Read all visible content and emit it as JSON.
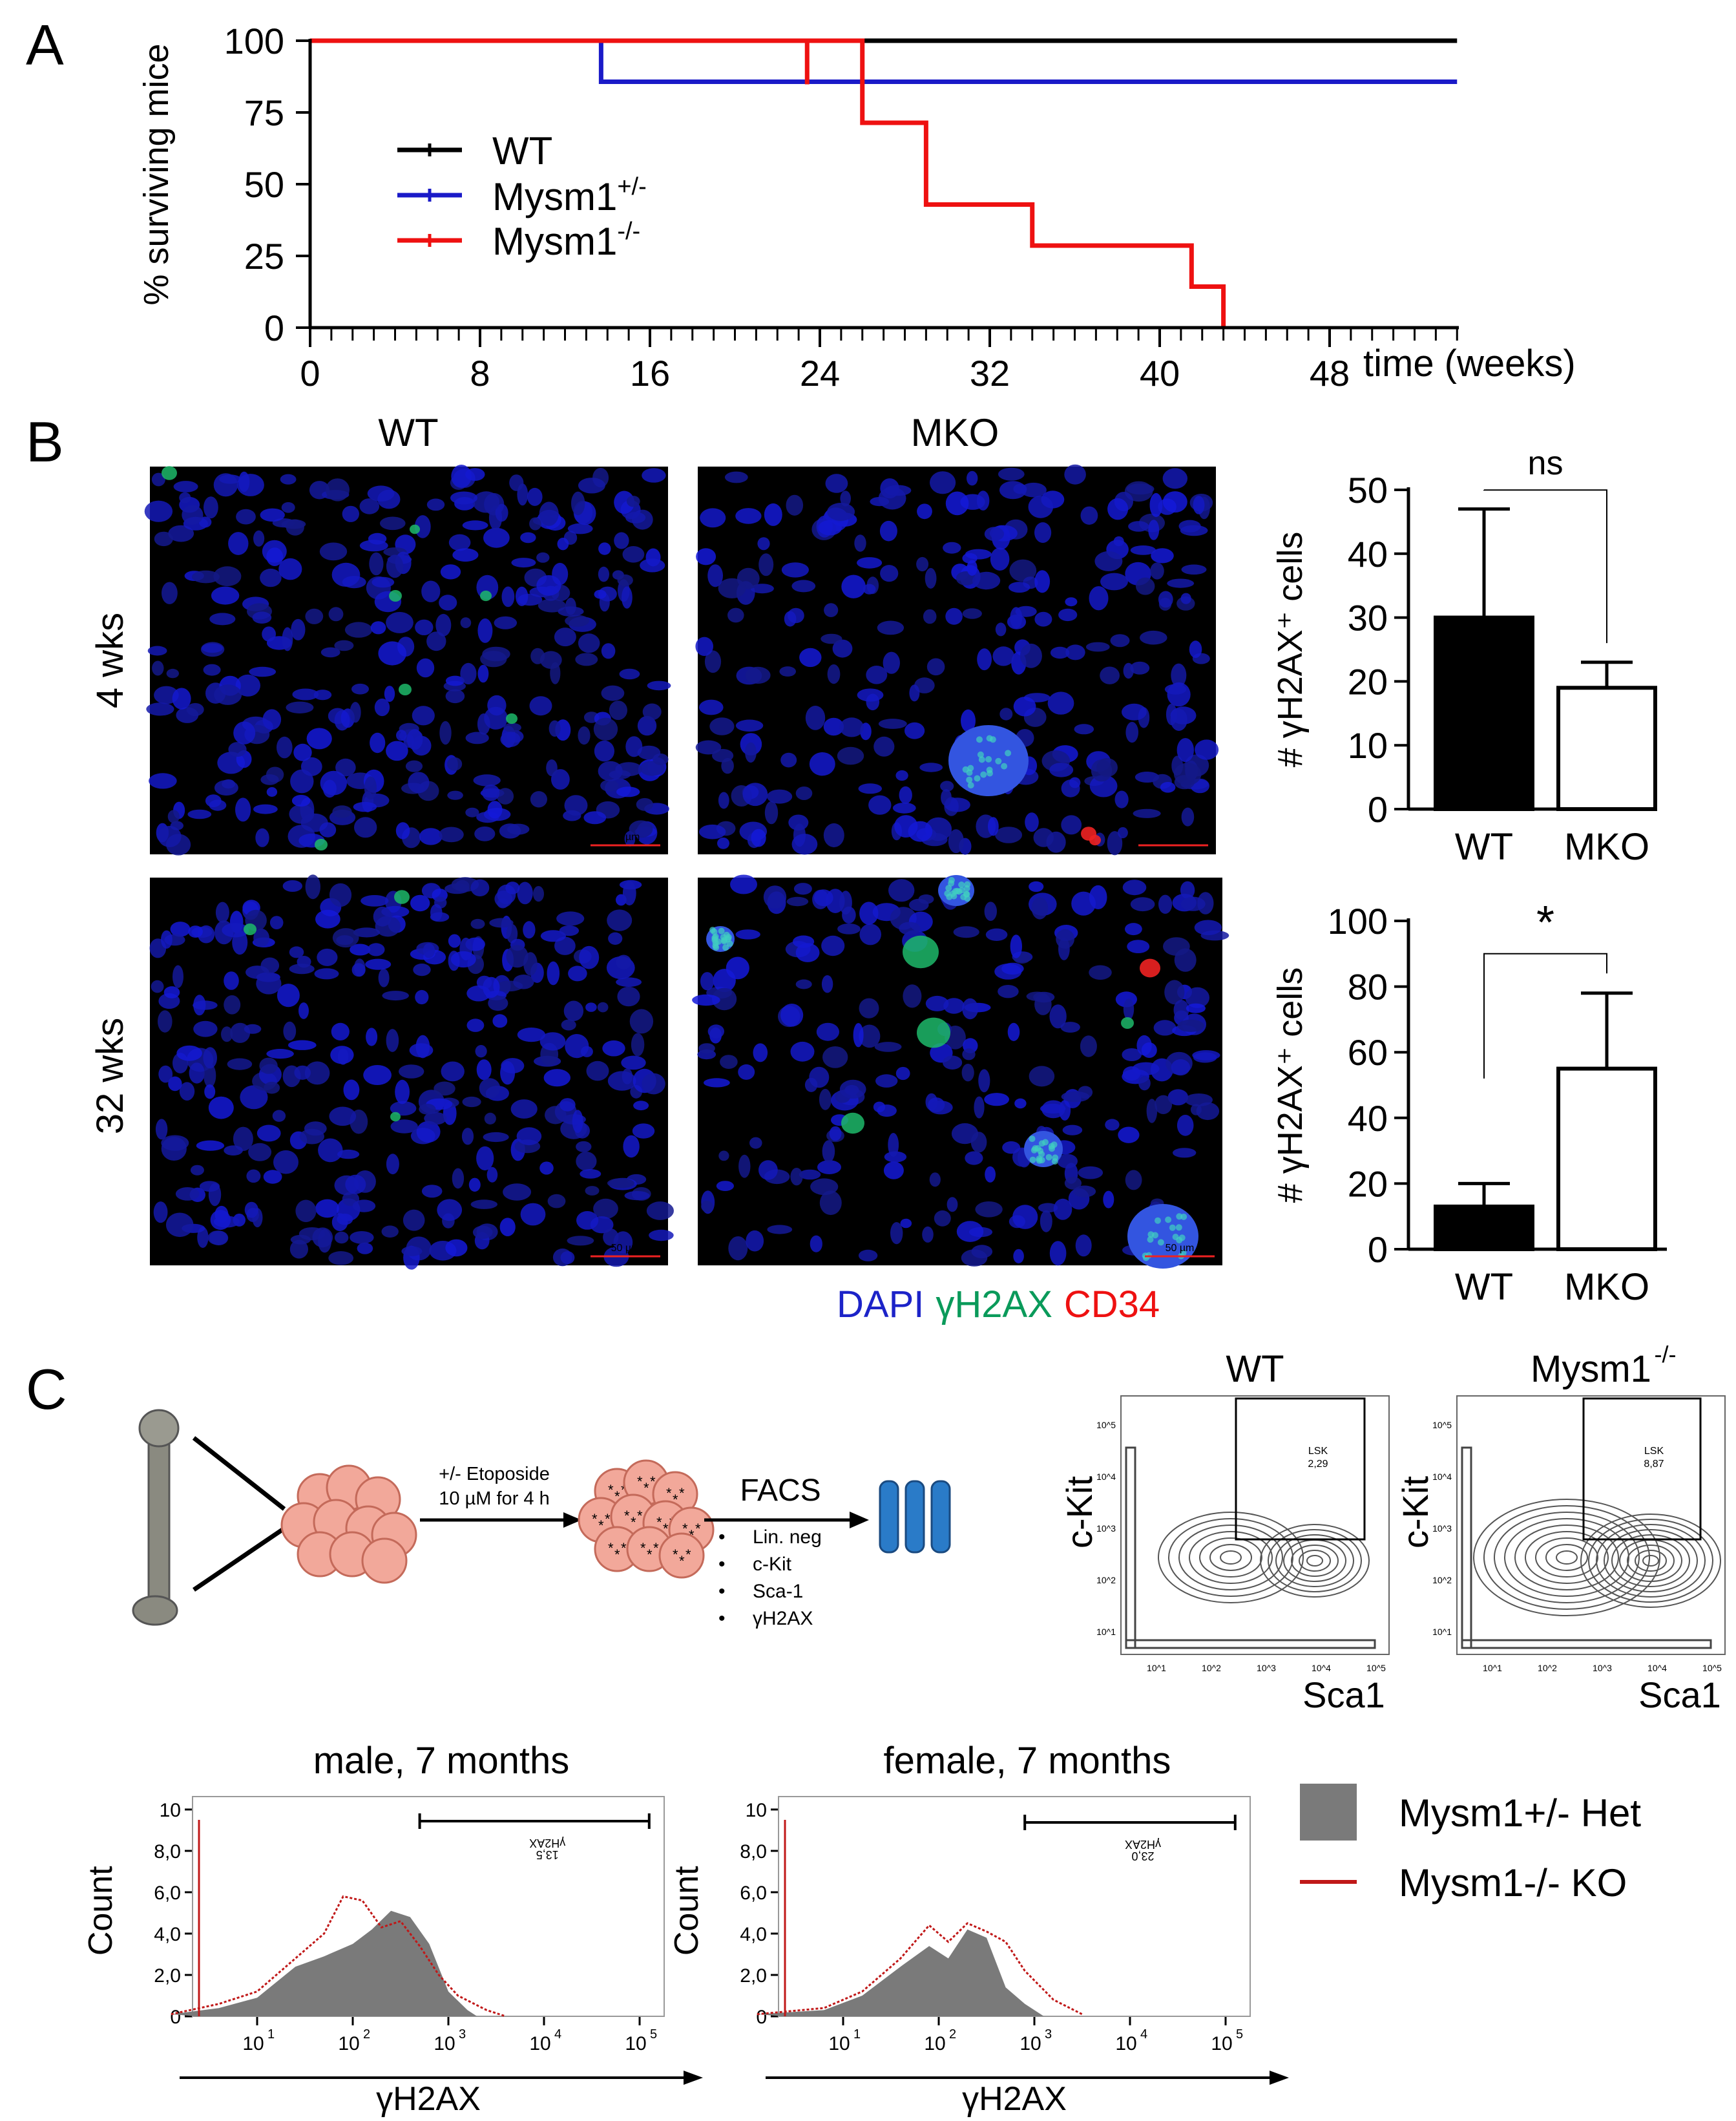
{
  "panels": {
    "A": "A",
    "B": "B",
    "C": "C"
  },
  "colors": {
    "wt": "#000000",
    "het": "#1a1ac8",
    "ko": "#ee1111",
    "het_fill": "#7a7a7a",
    "ko_line": "#c01818",
    "dapi": "#1c23c8",
    "gh2ax": "#0a9a5a",
    "cd34": "#ee1111",
    "cell_fill": "#f2a89a",
    "cell_stroke": "#c46a5a",
    "tube": "#2a7bc8"
  },
  "chart_data": [
    {
      "id": "survival",
      "type": "line",
      "xlabel": "time (weeks)",
      "ylabel": "% surviving mice",
      "xlim": [
        0,
        48
      ],
      "ylim": [
        0,
        100
      ],
      "xticks": [
        "0",
        "8",
        "16",
        "24",
        "32",
        "40",
        "48"
      ],
      "yticks": [
        "0",
        "25",
        "50",
        "75",
        "100"
      ],
      "series": [
        {
          "name": "WT",
          "sup": "",
          "color": "#000000",
          "x": [
            0,
            54
          ],
          "y": [
            100,
            100
          ]
        },
        {
          "name": "Mysm1",
          "sup": "+/-",
          "color": "#1a1ac8",
          "x": [
            0,
            13.7,
            13.7,
            54
          ],
          "y": [
            100,
            100,
            85.7,
            85.7
          ]
        },
        {
          "name": "Mysm1",
          "sup": "-/-",
          "color": "#ee1111",
          "x": [
            0,
            23.4,
            23.4,
            26,
            26,
            29,
            29,
            34,
            34,
            41.5,
            41.5,
            43,
            43
          ],
          "y": [
            100,
            100,
            100,
            100,
            71.4,
            71.4,
            42.9,
            42.9,
            28.6,
            28.6,
            14.3,
            14.3,
            0
          ]
        }
      ]
    },
    {
      "id": "gh2ax_4wk",
      "type": "bar",
      "ylabel": "# γH2AX⁺ cells",
      "categories": [
        "WT",
        "MKO"
      ],
      "values": [
        30,
        19
      ],
      "errors": [
        17,
        4
      ],
      "ylim": [
        0,
        50
      ],
      "yticks": [
        "0",
        "10",
        "20",
        "30",
        "40",
        "50"
      ],
      "significance": "ns"
    },
    {
      "id": "gh2ax_32wk",
      "type": "bar",
      "ylabel": "# γH2AX⁺ cells",
      "categories": [
        "WT",
        "MKO"
      ],
      "values": [
        13,
        55
      ],
      "errors": [
        7,
        23
      ],
      "ylim": [
        0,
        100
      ],
      "yticks": [
        "0",
        "20",
        "40",
        "60",
        "80",
        "100"
      ],
      "significance": "*"
    },
    {
      "id": "hist_male",
      "type": "area",
      "title": "male, 7 months",
      "xlabel": "γH2AX",
      "ylabel": "Count",
      "yticks": [
        "0",
        "2,0",
        "4,0",
        "6,0",
        "8,0",
        "10"
      ],
      "xticks": [
        "10",
        "10",
        "10",
        "10",
        "10"
      ],
      "xtick_exp": [
        "1",
        "2",
        "3",
        "4",
        "5"
      ],
      "gate_label": "γH2AX",
      "gate_value": "13,5"
    },
    {
      "id": "hist_female",
      "type": "area",
      "title": "female, 7 months",
      "xlabel": "γH2AX",
      "ylabel": "Count",
      "yticks": [
        "0",
        "2,0",
        "4,0",
        "6,0",
        "8,0",
        "10"
      ],
      "xticks": [
        "10",
        "10",
        "10",
        "10",
        "10"
      ],
      "xtick_exp": [
        "1",
        "2",
        "3",
        "4",
        "5"
      ],
      "gate_label": "γH2AX",
      "gate_value": "23,0"
    }
  ],
  "micrographs": {
    "col_wt": "WT",
    "col_mko": "MKO",
    "row_4": "4 wks",
    "row_32": "32 wks",
    "scale": "50 µm"
  },
  "stain_legend": {
    "dapi": "DAPI",
    "gh2ax": "γH2AX",
    "cd34": "CD34"
  },
  "schematic": {
    "treatment_line1": "+/- Etoposide",
    "treatment_line2": "10 µM for 4 h",
    "facs": "FACS",
    "markers": [
      "Lin. neg",
      "c-Kit",
      "Sca-1",
      "γH2AX"
    ]
  },
  "facs_plots": [
    {
      "title": "WT",
      "title_sup": "",
      "ylabel": "c-Kit",
      "xlabel": "Sca1",
      "gate": "LSK",
      "gate_value": "2,29"
    },
    {
      "title": "Mysm1",
      "title_sup": "-/-",
      "ylabel": "c-Kit",
      "xlabel": "Sca1",
      "gate": "LSK",
      "gate_value": "8,87"
    }
  ],
  "facs_ticks": {
    "base": "10",
    "exp": [
      "1",
      "2",
      "3",
      "4",
      "5"
    ]
  },
  "hist_legend": [
    {
      "label": "Mysm1+/- Het",
      "style": "fill",
      "color": "#7a7a7a"
    },
    {
      "label": "Mysm1-/- KO",
      "style": "line",
      "color": "#c01818"
    }
  ]
}
